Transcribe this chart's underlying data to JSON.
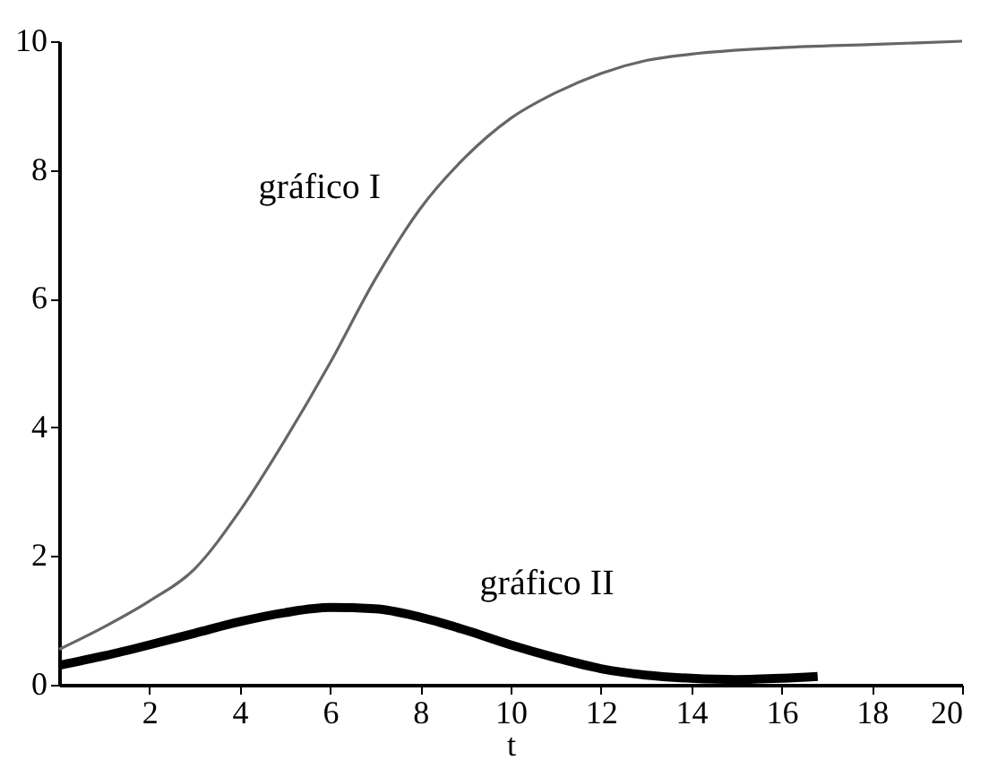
{
  "chart_data": {
    "type": "line",
    "xlabel": "t",
    "series": [
      {
        "name": "gráfico I",
        "color": "#666666",
        "x": [
          0,
          1,
          2,
          3,
          4,
          5,
          6,
          7,
          8,
          9,
          10,
          11,
          12,
          13,
          14,
          16,
          18,
          20
        ],
        "values": [
          0.55,
          0.9,
          1.3,
          1.8,
          2.7,
          3.8,
          5.0,
          6.3,
          7.4,
          8.2,
          8.8,
          9.2,
          9.5,
          9.7,
          9.8,
          9.9,
          9.95,
          10.0
        ]
      },
      {
        "name": "gráfico II",
        "color": "#000000",
        "x": [
          0,
          1,
          2,
          3,
          4,
          5,
          6,
          7,
          8,
          9,
          10,
          11,
          12,
          13,
          14,
          15,
          16,
          16.8
        ],
        "values": [
          0.3,
          0.45,
          0.62,
          0.8,
          0.98,
          1.12,
          1.2,
          1.18,
          1.05,
          0.85,
          0.62,
          0.42,
          0.25,
          0.15,
          0.1,
          0.08,
          0.1,
          0.13
        ]
      }
    ],
    "xlim": [
      0,
      20
    ],
    "xticks": [
      2,
      4,
      6,
      8,
      10,
      12,
      14,
      16,
      18,
      20
    ],
    "ylim": [
      0,
      10
    ],
    "yticks": [
      0,
      2,
      4,
      6,
      8,
      10
    ],
    "grid": false,
    "legend": false,
    "marker": "none",
    "line_style": "solid"
  }
}
